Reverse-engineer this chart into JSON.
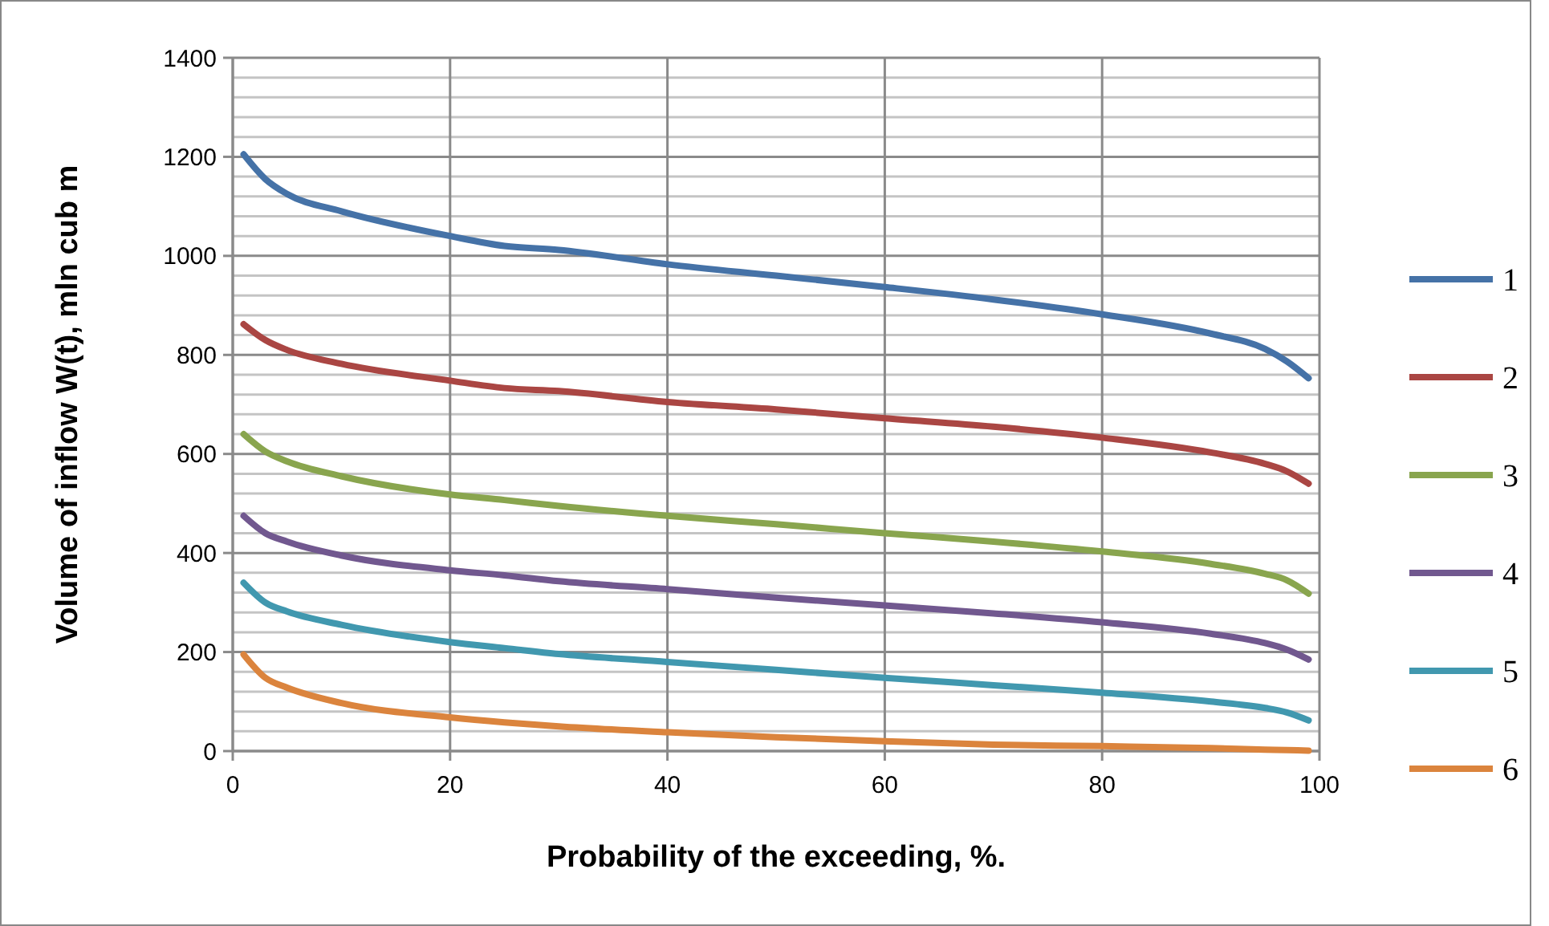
{
  "chart_data": {
    "type": "line",
    "xlabel": "Probability of the exceeding, %.",
    "ylabel": "Volume of inflow W(t), mln cub m",
    "x": [
      1,
      3,
      5,
      10,
      20,
      25,
      30,
      40,
      50,
      60,
      70,
      80,
      90,
      95,
      97,
      99
    ],
    "xlim": [
      0,
      100
    ],
    "xticks": [
      0,
      20,
      40,
      60,
      80,
      100
    ],
    "ylim": [
      0,
      1400
    ],
    "yticks": [
      0,
      {
        "value": 40,
        "label": null
      },
      {
        "value": 80,
        "label": null
      },
      {
        "value": 120,
        "label": null
      },
      {
        "value": 160,
        "label": null
      },
      200,
      {
        "value": 240,
        "label": null
      },
      {
        "value": 280,
        "label": null
      },
      {
        "value": 320,
        "label": null
      },
      {
        "value": 360,
        "label": null
      },
      400,
      {
        "value": 440,
        "label": null
      },
      {
        "value": 480,
        "label": null
      },
      {
        "value": 520,
        "label": null
      },
      {
        "value": 560,
        "label": null
      },
      600,
      {
        "value": 640,
        "label": null
      },
      {
        "value": 680,
        "label": null
      },
      {
        "value": 720,
        "label": null
      },
      {
        "value": 760,
        "label": null
      },
      800,
      {
        "value": 840,
        "label": null
      },
      {
        "value": 880,
        "label": null
      },
      {
        "value": 920,
        "label": null
      },
      {
        "value": 960,
        "label": null
      },
      1000,
      {
        "value": 1040,
        "label": null
      },
      {
        "value": 1080,
        "label": null
      },
      {
        "value": 1120,
        "label": null
      },
      {
        "value": 1160,
        "label": null
      },
      1200,
      {
        "value": 1240,
        "label": null
      },
      {
        "value": 1280,
        "label": null
      },
      {
        "value": 1320,
        "label": null
      },
      {
        "value": 1360,
        "label": null
      },
      1400
    ],
    "grid": true,
    "legend": "right",
    "marker": "none",
    "line_style": "solid",
    "series": [
      {
        "name": "1",
        "color": "#4572a7",
        "values": [
          1205,
          1155,
          1125,
          1090,
          1040,
          1020,
          1012,
          983,
          960,
          937,
          912,
          882,
          843,
          812,
          787,
          753
        ]
      },
      {
        "name": "2",
        "color": "#aa4643",
        "values": [
          862,
          830,
          810,
          782,
          748,
          733,
          727,
          705,
          690,
          672,
          655,
          633,
          603,
          580,
          565,
          540
        ]
      },
      {
        "name": "3",
        "color": "#89a54e",
        "values": [
          640,
          605,
          585,
          555,
          518,
          507,
          495,
          475,
          458,
          440,
          423,
          403,
          378,
          358,
          345,
          318
        ]
      },
      {
        "name": "4",
        "color": "#71588f",
        "values": [
          475,
          440,
          423,
          395,
          365,
          355,
          343,
          327,
          310,
          294,
          278,
          260,
          237,
          218,
          205,
          185
        ]
      },
      {
        "name": "5",
        "color": "#4198af",
        "values": [
          340,
          300,
          282,
          255,
          220,
          208,
          196,
          180,
          164,
          148,
          133,
          118,
          100,
          87,
          78,
          62
        ]
      },
      {
        "name": "6",
        "color": "#db843d",
        "values": [
          195,
          148,
          128,
          97,
          68,
          58,
          50,
          38,
          28,
          20,
          13,
          10,
          6,
          3,
          2,
          1
        ]
      }
    ]
  }
}
